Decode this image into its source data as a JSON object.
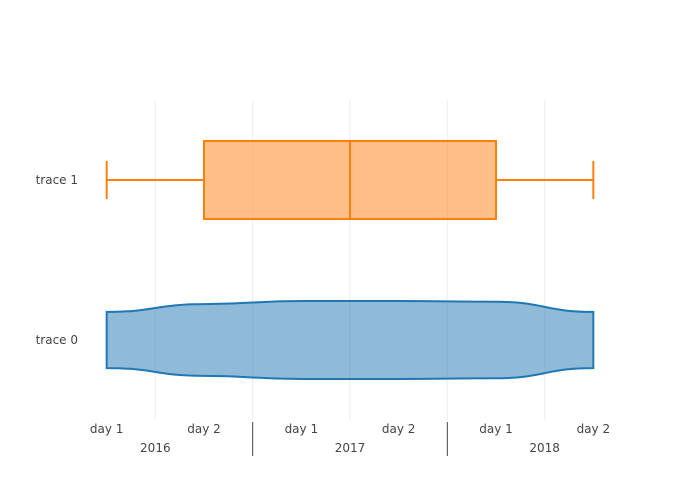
{
  "chart_data": {
    "type": "box",
    "orientation": "horizontal",
    "x_axis": {
      "categories": [
        "2016 day 1",
        "2016 day 2",
        "2017 day 1",
        "2017 day 2",
        "2018 day 1",
        "2018 day 2"
      ],
      "tick_labels": [
        "day 1",
        "day 2",
        "day 1",
        "day 2",
        "day 1",
        "day 2"
      ],
      "group_labels": [
        "2016",
        "2017",
        "2018"
      ],
      "group_size": 2,
      "vertical_grid": true
    },
    "y_axis": {
      "categories": [
        "trace 0",
        "trace 1"
      ]
    },
    "series": [
      {
        "name": "trace 0",
        "kind": "violin",
        "color": "#1f77b4",
        "fill": "#1f77b4",
        "fill_opacity": 0.5,
        "range": [
          0,
          5
        ],
        "density": [
          0.72,
          0.92,
          1.0,
          1.0,
          0.98,
          0.72
        ]
      },
      {
        "name": "trace 1",
        "kind": "box",
        "color": "#ff7f0e",
        "fill": "#ff7f0e",
        "fill_opacity": 0.5,
        "min": 0,
        "q1": 1,
        "median": 2.5,
        "q3": 4,
        "max": 5
      }
    ]
  }
}
